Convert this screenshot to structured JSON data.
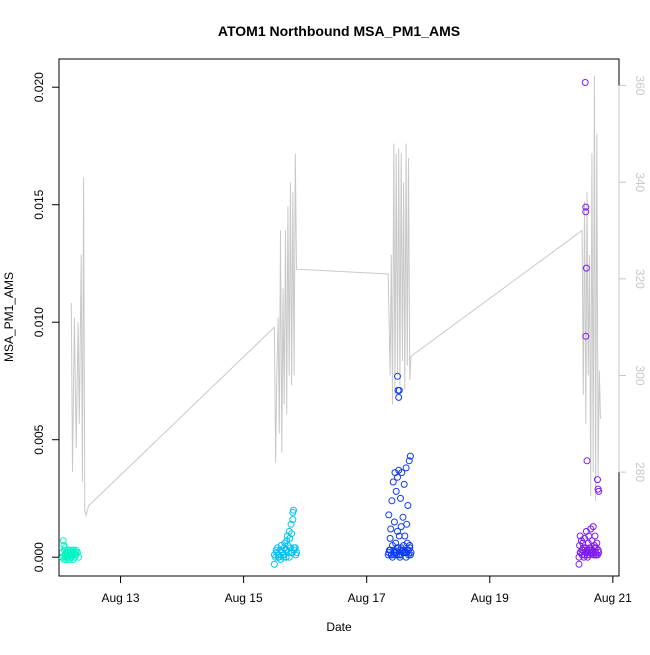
{
  "chart_data": {
    "type": "scatter",
    "title": "ATOM1 Northbound MSA_PM1_AMS",
    "xlabel": "Date",
    "ylabel": "MSA_PM1_AMS",
    "y2label": "",
    "x_unit": "days in August",
    "xlim": [
      12.0,
      21.1
    ],
    "ylim": [
      -0.0008,
      0.0212
    ],
    "y2lim": [
      258.5,
      365.5
    ],
    "x_ticks": [
      {
        "value": 13,
        "label": "Aug 13"
      },
      {
        "value": 15,
        "label": "Aug 15"
      },
      {
        "value": 17,
        "label": "Aug 17"
      },
      {
        "value": 19,
        "label": "Aug 19"
      },
      {
        "value": 21,
        "label": "Aug 21"
      }
    ],
    "y_ticks": [
      {
        "value": 0.0,
        "label": "0.000"
      },
      {
        "value": 0.005,
        "label": "0.005"
      },
      {
        "value": 0.01,
        "label": "0.010"
      },
      {
        "value": 0.015,
        "label": "0.015"
      },
      {
        "value": 0.02,
        "label": "0.020"
      }
    ],
    "y2_ticks": [
      {
        "value": 280,
        "label": "280"
      },
      {
        "value": 300,
        "label": "300"
      },
      {
        "value": 320,
        "label": "320"
      },
      {
        "value": 340,
        "label": "340"
      },
      {
        "value": 360,
        "label": "360"
      }
    ],
    "grid": false,
    "legend": "none",
    "secondary_line": {
      "axis": "right",
      "color": "#c8c8c8",
      "x": [
        12.2,
        12.22,
        12.25,
        12.28,
        12.31,
        12.33,
        12.36,
        12.38,
        12.4,
        12.42,
        12.44,
        12.46,
        12.48,
        15.5,
        15.52,
        15.54,
        15.56,
        15.58,
        15.6,
        15.62,
        15.64,
        15.66,
        15.68,
        15.7,
        15.72,
        15.74,
        15.76,
        15.78,
        15.8,
        15.82,
        15.84,
        15.86,
        17.35,
        17.38,
        17.4,
        17.42,
        17.44,
        17.46,
        17.48,
        17.5,
        17.52,
        17.54,
        17.56,
        17.58,
        17.6,
        17.62,
        17.64,
        17.66,
        17.68,
        17.7,
        17.72,
        20.5,
        20.52,
        20.54,
        20.56,
        20.58,
        20.6,
        20.62,
        20.64,
        20.66,
        20.68,
        20.7,
        20.72,
        20.74,
        20.76,
        20.78,
        20.8
      ],
      "y": [
        315,
        280,
        312,
        285,
        311,
        290,
        325,
        278,
        341,
        272,
        271,
        272,
        273,
        310,
        282,
        300,
        312,
        288,
        330,
        284,
        318,
        294,
        330,
        292,
        335,
        300,
        340,
        298,
        338,
        300,
        346,
        322,
        321,
        300,
        325,
        294,
        348,
        296,
        346,
        300,
        347,
        298,
        346,
        303,
        340,
        297,
        348,
        302,
        345,
        299,
        304,
        330,
        296,
        336,
        290,
        338,
        300,
        325,
        275,
        346,
        280,
        362,
        274,
        350,
        279,
        301,
        291
      ]
    },
    "series": [
      {
        "color": "#00f5c4",
        "x": [
          12.05,
          12.06,
          12.07,
          12.08,
          12.09,
          12.1,
          12.1,
          12.11,
          12.12,
          12.12,
          12.13,
          12.14,
          12.15,
          12.15,
          12.16,
          12.17,
          12.18,
          12.18,
          12.19,
          12.2,
          12.21,
          12.22,
          12.23,
          12.24,
          12.25,
          12.26,
          12.27,
          12.28,
          12.3,
          12.32,
          12.08,
          12.1,
          12.14,
          12.18,
          12.22,
          12.26,
          12.05,
          12.12,
          12.2,
          12.28
        ],
        "y": [
          0.0002,
          0.0,
          0.0007,
          -0.0001,
          0.0003,
          0.0,
          0.0004,
          0.0001,
          0.0002,
          -0.0001,
          0.0,
          0.0003,
          0.0001,
          0.0002,
          0.0,
          -0.0001,
          0.0002,
          0.0003,
          0.0001,
          0.0,
          0.0002,
          0.0001,
          -0.0001,
          0.0003,
          0.0002,
          0.0,
          0.0001,
          0.0003,
          0.0002,
          0.0,
          0.0005,
          0.0001,
          0.0,
          0.0002,
          0.0003,
          0.0001,
          0.0,
          0.0002,
          0.0001,
          0.0002
        ]
      },
      {
        "color": "#00c4f5",
        "x": [
          15.5,
          15.52,
          15.54,
          15.55,
          15.57,
          15.58,
          15.6,
          15.61,
          15.63,
          15.64,
          15.65,
          15.66,
          15.67,
          15.68,
          15.69,
          15.7,
          15.71,
          15.72,
          15.73,
          15.74,
          15.75,
          15.76,
          15.77,
          15.78,
          15.79,
          15.8,
          15.8,
          15.81,
          15.82,
          15.84,
          15.85,
          15.86,
          15.5,
          15.53,
          15.56,
          15.6,
          15.63,
          15.66,
          15.7,
          15.74,
          15.78,
          15.82
        ],
        "y": [
          -0.0003,
          0.0,
          0.0002,
          0.0004,
          0.0001,
          0.0,
          0.0003,
          0.0005,
          0.0002,
          0.0001,
          0.0,
          0.0004,
          0.0006,
          0.0003,
          0.0,
          0.0007,
          0.0009,
          0.0005,
          0.0002,
          0.0011,
          0.0008,
          0.0004,
          0.0014,
          0.001,
          0.0002,
          0.0016,
          0.0019,
          0.002,
          0.0003,
          0.0004,
          0.0001,
          0.0002,
          0.0001,
          0.0003,
          0.0,
          -0.0001,
          0.0002,
          0.0001,
          0.0003,
          0.0,
          0.0002,
          0.0004
        ]
      },
      {
        "color": "#0f3cf0",
        "x": [
          17.35,
          17.36,
          17.37,
          17.38,
          17.39,
          17.4,
          17.41,
          17.42,
          17.43,
          17.44,
          17.45,
          17.46,
          17.47,
          17.48,
          17.49,
          17.5,
          17.5,
          17.51,
          17.52,
          17.53,
          17.54,
          17.55,
          17.56,
          17.57,
          17.58,
          17.59,
          17.6,
          17.61,
          17.62,
          17.63,
          17.64,
          17.65,
          17.66,
          17.67,
          17.68,
          17.69,
          17.7,
          17.71,
          17.72,
          17.5,
          17.51,
          17.52,
          17.53,
          17.38,
          17.42,
          17.46,
          17.5,
          17.55,
          17.6,
          17.65,
          17.7,
          17.4,
          17.48,
          17.56,
          17.64,
          17.44,
          17.52,
          17.6,
          17.68,
          17.36,
          17.45,
          17.54,
          17.62,
          17.71
        ],
        "y": [
          0.0001,
          0.0018,
          0.0003,
          0.0008,
          0.0012,
          0.0001,
          0.0024,
          0.0005,
          0.0032,
          0.0002,
          0.0015,
          0.0036,
          0.0006,
          0.0028,
          0.0001,
          0.0034,
          0.0011,
          0.0004,
          0.0037,
          0.0009,
          0.0,
          0.0025,
          0.0013,
          0.0036,
          0.0003,
          0.0017,
          0.0005,
          0.0031,
          0.0009,
          0.0002,
          0.0038,
          0.0014,
          0.0006,
          0.0022,
          0.0001,
          0.0041,
          0.0004,
          0.0043,
          0.0002,
          0.0077,
          0.0071,
          0.0068,
          0.0071,
          0.0003,
          0.0,
          0.0002,
          0.0004,
          0.0001,
          0.0003,
          0.0002,
          0.0005,
          0.0001,
          0.0002,
          0.0004,
          0.0,
          0.0003,
          0.0001,
          0.0002,
          0.0003,
          0.0002,
          0.0001,
          0.0003,
          0.0002,
          0.0001
        ]
      },
      {
        "color": "#7f1cf0",
        "x": [
          20.45,
          20.46,
          20.47,
          20.48,
          20.49,
          20.5,
          20.51,
          20.52,
          20.53,
          20.54,
          20.55,
          20.56,
          20.57,
          20.58,
          20.59,
          20.6,
          20.61,
          20.62,
          20.63,
          20.64,
          20.65,
          20.66,
          20.67,
          20.68,
          20.69,
          20.7,
          20.71,
          20.72,
          20.73,
          20.74,
          20.75,
          20.76,
          20.77,
          20.55,
          20.56,
          20.56,
          20.57,
          20.56,
          20.58,
          20.75,
          20.76,
          20.77,
          20.47,
          20.52,
          20.58,
          20.63,
          20.68,
          20.73,
          20.5,
          20.6,
          20.7,
          20.45,
          20.54,
          20.62,
          20.66,
          20.72,
          20.76
        ],
        "y": [
          0.0,
          0.0005,
          0.0009,
          0.0002,
          0.0007,
          0.0001,
          0.0006,
          0.0003,
          0.0,
          0.0008,
          0.0004,
          0.0002,
          0.0011,
          0.0003,
          0.0,
          0.0006,
          0.0009,
          0.0001,
          0.0004,
          0.0012,
          0.0002,
          0.0007,
          0.0003,
          0.0013,
          0.0001,
          0.0005,
          0.0009,
          0.0002,
          0.0004,
          0.0006,
          0.0001,
          0.0003,
          0.0002,
          0.0202,
          0.0149,
          0.0147,
          0.0123,
          0.0094,
          0.0041,
          0.0033,
          0.0029,
          0.0028,
          0.0002,
          0.0004,
          0.0001,
          0.0003,
          0.0002,
          0.0001,
          0.0003,
          0.0002,
          0.0004,
          -0.0003,
          0.0001,
          0.0003,
          0.0002,
          0.0001,
          0.0003
        ]
      }
    ]
  }
}
